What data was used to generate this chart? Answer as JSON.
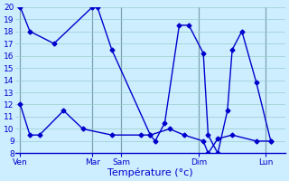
{
  "background_color": "#cceeff",
  "grid_color": "#99cccc",
  "line_color": "#0000cc",
  "xlabel": "Température (°c)",
  "ylim": [
    8,
    20
  ],
  "yticks": [
    8,
    9,
    10,
    11,
    12,
    13,
    14,
    15,
    16,
    17,
    18,
    19,
    20
  ],
  "xlim": [
    0,
    28
  ],
  "x_tick_positions": [
    0.5,
    8,
    11,
    19,
    26
  ],
  "x_tick_labels": [
    "Ven",
    "Mar",
    "Sam",
    "Dim",
    "Lun"
  ],
  "vline_positions": [
    0.5,
    8,
    11,
    19,
    26
  ],
  "series1_x": [
    0.5,
    1.5,
    4,
    8,
    8.5,
    10,
    14,
    14.5,
    15.5,
    17,
    18,
    19.5,
    20,
    21,
    22,
    22.5,
    23.5,
    25,
    26.5
  ],
  "series1_y": [
    20,
    18,
    17,
    20,
    20,
    16.5,
    9.5,
    9.0,
    10.5,
    18.5,
    18.5,
    16.2,
    9.5,
    8,
    11.5,
    16.5,
    18,
    13.8,
    9.0
  ],
  "series2_x": [
    0.5,
    1.5,
    2.5,
    5,
    7,
    10,
    13,
    14,
    16,
    17.5,
    19.5,
    20,
    21,
    22.5,
    25,
    26.5
  ],
  "series2_y": [
    12,
    9.5,
    9.5,
    11.5,
    10,
    9.5,
    9.5,
    9.5,
    10,
    9.5,
    9.0,
    8.0,
    9.2,
    9.5,
    9.0,
    9.0
  ],
  "marker": "D",
  "markersize": 2.5,
  "linewidth": 1.0,
  "tick_fontsize": 6.5,
  "xlabel_fontsize": 8
}
